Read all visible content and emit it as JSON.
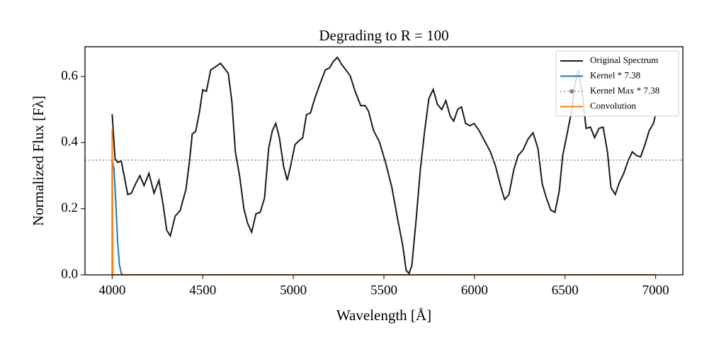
{
  "chart_data": {
    "type": "line",
    "title": "Degrading to R = 100",
    "xlabel": "Wavelength [Å]",
    "ylabel": "Normalized Flux [Fλ]",
    "xlim": [
      3850,
      7150
    ],
    "ylim": [
      0,
      0.69
    ],
    "xticks": [
      4000,
      4500,
      5000,
      5500,
      6000,
      6500,
      7000
    ],
    "yticks": [
      {
        "value": 0,
        "label": "0.0"
      },
      0.2,
      0.4,
      0.6
    ],
    "legend": "upper right",
    "series": [
      {
        "name": "Original Spectrum",
        "color": "#1a1a1a",
        "x": [
          4000,
          4016,
          4031,
          4050,
          4066,
          4086,
          4106,
          4129,
          4153,
          4176,
          4203,
          4231,
          4258,
          4282,
          4301,
          4321,
          4348,
          4375,
          4407,
          4426,
          4442,
          4461,
          4481,
          4500,
          4520,
          4544,
          4567,
          4598,
          4622,
          4641,
          4661,
          4680,
          4704,
          4727,
          4747,
          4770,
          4794,
          4817,
          4841,
          4864,
          4884,
          4903,
          4923,
          4946,
          4966,
          4985,
          5009,
          5028,
          5052,
          5072,
          5095,
          5118,
          5146,
          5177,
          5200,
          5220,
          5243,
          5266,
          5290,
          5314,
          5341,
          5372,
          5396,
          5415,
          5443,
          5474,
          5509,
          5544,
          5576,
          5603,
          5623,
          5639,
          5654,
          5678,
          5701,
          5725,
          5748,
          5772,
          5795,
          5819,
          5842,
          5866,
          5885,
          5908,
          5928,
          5951,
          5975,
          5998,
          6026,
          6057,
          6088,
          6116,
          6143,
          6166,
          6190,
          6217,
          6241,
          6268,
          6296,
          6323,
          6350,
          6374,
          6397,
          6421,
          6444,
          6468,
          6487,
          6511,
          6534,
          6554,
          6573,
          6593,
          6616,
          6640,
          6663,
          6687,
          6710,
          6734,
          6753,
          6777,
          6800,
          6824,
          6847,
          6871,
          6894,
          6917,
          6941,
          6964,
          6988,
          7000
        ],
        "values": [
          0.486,
          0.35,
          0.34,
          0.345,
          0.3,
          0.243,
          0.247,
          0.275,
          0.3,
          0.27,
          0.307,
          0.247,
          0.286,
          0.21,
          0.135,
          0.118,
          0.178,
          0.194,
          0.258,
          0.34,
          0.426,
          0.434,
          0.49,
          0.56,
          0.555,
          0.62,
          0.628,
          0.64,
          0.623,
          0.609,
          0.523,
          0.372,
          0.297,
          0.2,
          0.157,
          0.129,
          0.185,
          0.189,
          0.232,
          0.383,
          0.436,
          0.458,
          0.415,
          0.329,
          0.286,
          0.329,
          0.394,
          0.404,
          0.415,
          0.484,
          0.49,
          0.533,
          0.576,
          0.62,
          0.626,
          0.645,
          0.658,
          0.637,
          0.62,
          0.602,
          0.555,
          0.512,
          0.512,
          0.495,
          0.436,
          0.404,
          0.34,
          0.264,
          0.168,
          0.092,
          0.013,
          0.004,
          0.028,
          0.168,
          0.318,
          0.436,
          0.533,
          0.561,
          0.516,
          0.5,
          0.527,
          0.48,
          0.465,
          0.501,
          0.508,
          0.458,
          0.451,
          0.458,
          0.436,
          0.404,
          0.372,
          0.329,
          0.271,
          0.228,
          0.243,
          0.318,
          0.361,
          0.378,
          0.411,
          0.43,
          0.383,
          0.275,
          0.232,
          0.196,
          0.189,
          0.254,
          0.361,
          0.426,
          0.49,
          0.576,
          0.62,
          0.555,
          0.443,
          0.447,
          0.415,
          0.443,
          0.447,
          0.372,
          0.264,
          0.243,
          0.28,
          0.307,
          0.344,
          0.372,
          0.361,
          0.357,
          0.394,
          0.436,
          0.458,
          0.486
        ]
      },
      {
        "name": "Kernel * 7.38",
        "color": "#1f77b4",
        "x": [
          4000,
          4000,
          4010,
          4020,
          4030,
          4040,
          4050,
          4060,
          7000
        ],
        "values": [
          0,
          0.348,
          0.32,
          0.22,
          0.1,
          0.03,
          0.005,
          0,
          0
        ]
      },
      {
        "name": "Kernel Max * 7.38",
        "color": "#808080",
        "style": "dotted",
        "y": 0.347
      },
      {
        "name": "Convolution",
        "color": "#ff7f0e",
        "x": [
          4000,
          4000,
          4004,
          7000
        ],
        "values": [
          0,
          0.44,
          0,
          0
        ]
      }
    ]
  }
}
